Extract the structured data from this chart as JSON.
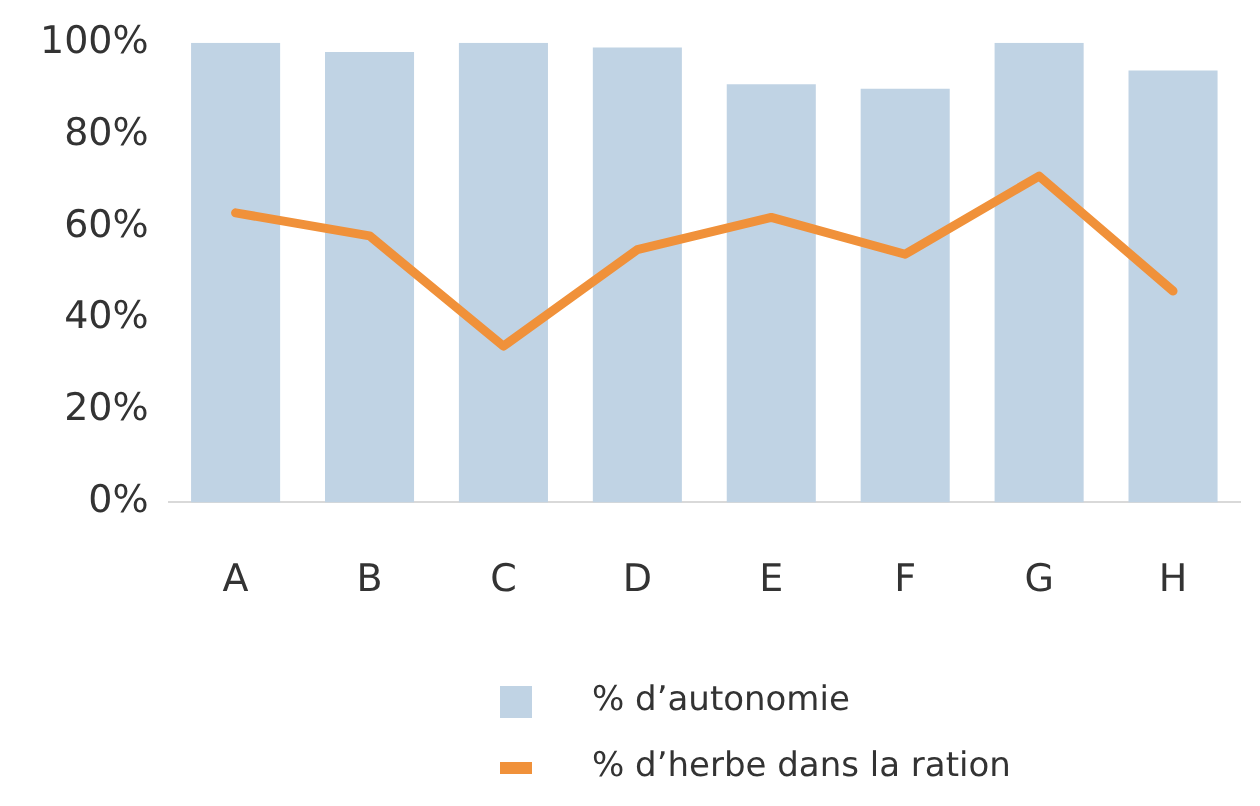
{
  "chart_data": {
    "type": "bar",
    "categories": [
      "A",
      "B",
      "C",
      "D",
      "E",
      "F",
      "G",
      "H"
    ],
    "series": [
      {
        "name": "% d’autonomie",
        "color": "#c0d3e4",
        "values": [
          100,
          98,
          100,
          99,
          91,
          90,
          100,
          94
        ]
      },
      {
        "name": "% d’herbe dans la ration",
        "type": "line",
        "color": "#f0913a",
        "values": [
          63,
          58,
          34,
          55,
          62,
          54,
          71,
          46
        ]
      }
    ],
    "ylim": [
      0,
      100
    ],
    "yticks": [
      {
        "value": 0,
        "label": "0%"
      },
      {
        "value": 20,
        "label": "20%"
      },
      {
        "value": 40,
        "label": "40%"
      },
      {
        "value": 60,
        "label": "60%"
      },
      {
        "value": 80,
        "label": "80%"
      },
      {
        "value": 100,
        "label": "100%"
      }
    ],
    "grid": false,
    "legend": "bottom",
    "marker": "none",
    "line_style": "solid"
  }
}
